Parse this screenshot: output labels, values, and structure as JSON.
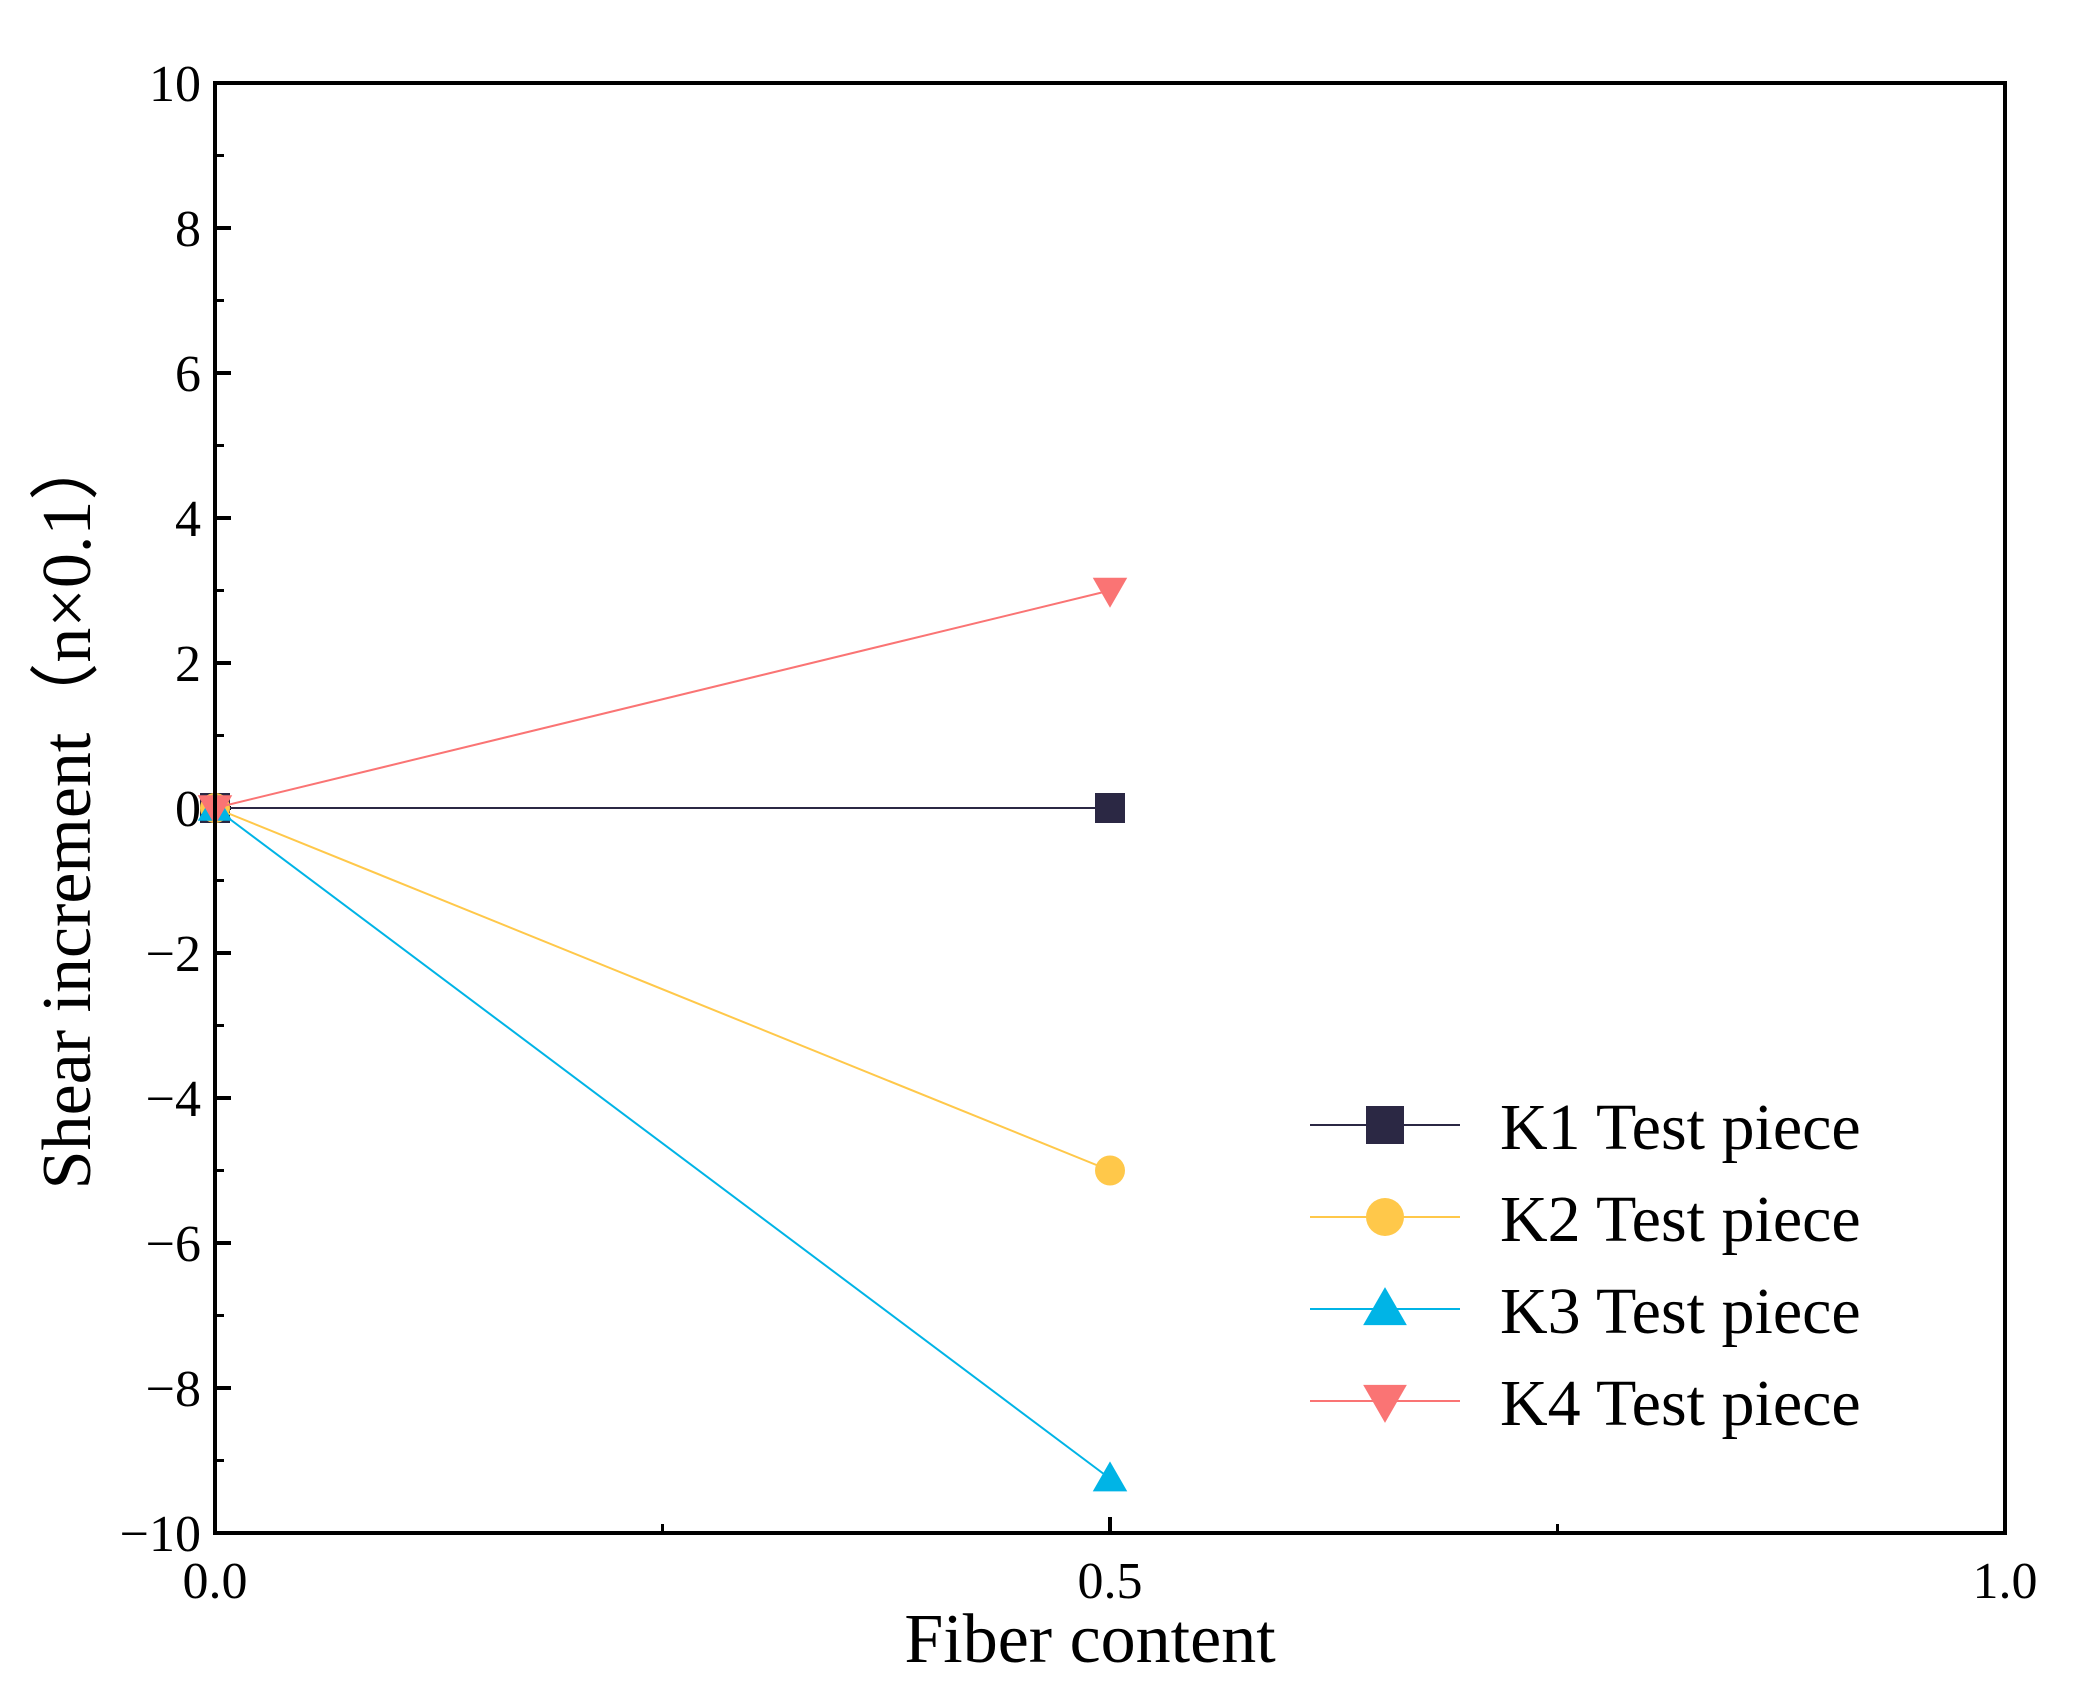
{
  "chart_data": {
    "type": "line",
    "title": "",
    "xlabel": "Fiber content",
    "ylabel": "Shear increment（n×0.1）",
    "xlim": [
      0.0,
      1.0
    ],
    "ylim": [
      -10,
      10
    ],
    "x_ticks": [
      0.0,
      0.5,
      1.0
    ],
    "x_tick_labels": [
      "0.0",
      "0.5",
      "1.0"
    ],
    "y_ticks": [
      -10,
      -8,
      -6,
      -4,
      -2,
      0,
      2,
      4,
      6,
      8,
      10
    ],
    "y_tick_labels": [
      "−10",
      "−8",
      "−6",
      "−4",
      "−2",
      "0",
      "2",
      "4",
      "6",
      "8",
      "10"
    ],
    "grid": false,
    "legend_position": "bottom-right",
    "x": [
      0.0,
      0.5
    ],
    "series": [
      {
        "name": "K1 Test piece",
        "values": [
          0,
          0
        ],
        "color": "#2b2844",
        "marker": "square"
      },
      {
        "name": "K2 Test piece",
        "values": [
          0,
          -5
        ],
        "color": "#ffc84a",
        "marker": "circle"
      },
      {
        "name": "K3 Test piece",
        "values": [
          0,
          -9.25
        ],
        "color": "#00b4e6",
        "marker": "triangle-up"
      },
      {
        "name": "K4 Test piece",
        "values": [
          0,
          3
        ],
        "color": "#fa7474",
        "marker": "triangle-down"
      }
    ]
  }
}
